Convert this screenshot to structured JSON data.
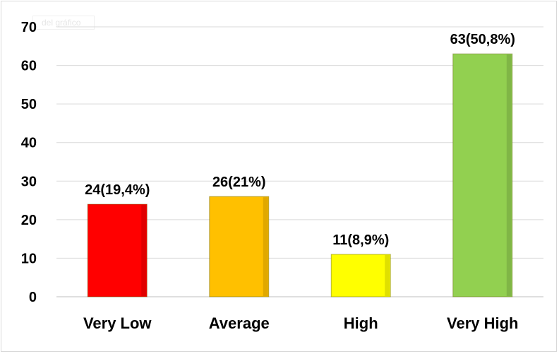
{
  "chart_data": {
    "type": "bar",
    "title": "",
    "xlabel": "",
    "ylabel": "",
    "ylim": [
      0,
      70
    ],
    "yticks": [
      0,
      10,
      20,
      30,
      40,
      50,
      60,
      70
    ],
    "grid": true,
    "legend": "none",
    "categories": [
      "Very Low",
      "Average",
      "High",
      "Very High"
    ],
    "values": [
      24,
      26,
      11,
      63
    ],
    "data_labels": [
      "24(19,4%)",
      "26(21%)",
      "11(8,9%)",
      "63(50,8%)"
    ],
    "colors": [
      "#ff0000",
      "#ffc000",
      "#ffff00",
      "#92d050"
    ]
  },
  "ghost_title_text": "del gráfico"
}
